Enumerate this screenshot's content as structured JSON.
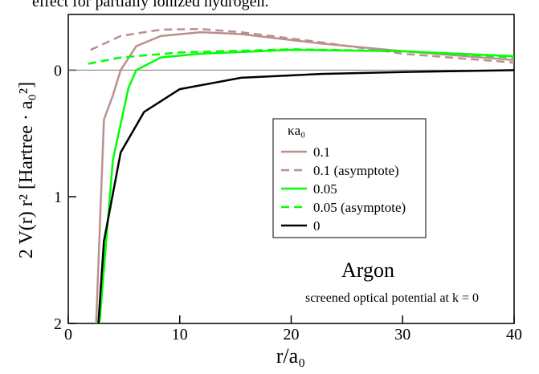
{
  "chart_data": {
    "type": "line",
    "top_text": "effect for partially ionized hydrogen.",
    "xlabel": "r/a₀",
    "ylabel": "2 V(r) r² [Hartree · a₀²]",
    "legend_title": "κa₀",
    "annotations": [
      "Argon",
      "screened optical potential at k = 0"
    ],
    "xlim": [
      0,
      40
    ],
    "xticks": [
      0,
      10,
      20,
      30,
      40
    ],
    "ylim": [
      2,
      -0.44
    ],
    "yticks": [
      0,
      1,
      2
    ],
    "zero_line": true,
    "series": [
      {
        "name": "0.1",
        "color": "#bc8f8f",
        "dash": false,
        "x": [
          2.5,
          3.2,
          4.0,
          4.7,
          6.1,
          8.3,
          11.9,
          15.5,
          22.7,
          30,
          40
        ],
        "values": [
          2,
          0.39,
          0.2,
          0,
          -0.19,
          -0.27,
          -0.3,
          -0.285,
          -0.21,
          -0.15,
          -0.08
        ]
      },
      {
        "name": "0.1 (asymptote)",
        "color": "#bc8f8f",
        "dash": true,
        "x": [
          2,
          4.7,
          8.3,
          11.9,
          15.5,
          22.7,
          30,
          40
        ],
        "values": [
          -0.16,
          -0.27,
          -0.32,
          -0.325,
          -0.3,
          -0.22,
          -0.13,
          -0.06
        ]
      },
      {
        "name": "0.05",
        "color": "#00ff00",
        "dash": false,
        "x": [
          2.8,
          4.0,
          5.4,
          6.1,
          8.3,
          11.9,
          20,
          30,
          40
        ],
        "values": [
          2,
          0.71,
          0.14,
          0,
          -0.1,
          -0.13,
          -0.16,
          -0.15,
          -0.11
        ]
      },
      {
        "name": "0.05 (asymptote)",
        "color": "#00ff00",
        "dash": true,
        "x": [
          1.8,
          4.7,
          10,
          20,
          30,
          40
        ],
        "values": [
          -0.05,
          -0.1,
          -0.14,
          -0.165,
          -0.15,
          -0.1
        ]
      },
      {
        "name": "0",
        "color": "#000000",
        "dash": false,
        "x": [
          2.7,
          3.2,
          4.7,
          6.8,
          10,
          15.5,
          22.7,
          30,
          40
        ],
        "values": [
          2,
          1.35,
          0.65,
          0.33,
          0.15,
          0.06,
          0.03,
          0.015,
          0
        ]
      }
    ]
  }
}
